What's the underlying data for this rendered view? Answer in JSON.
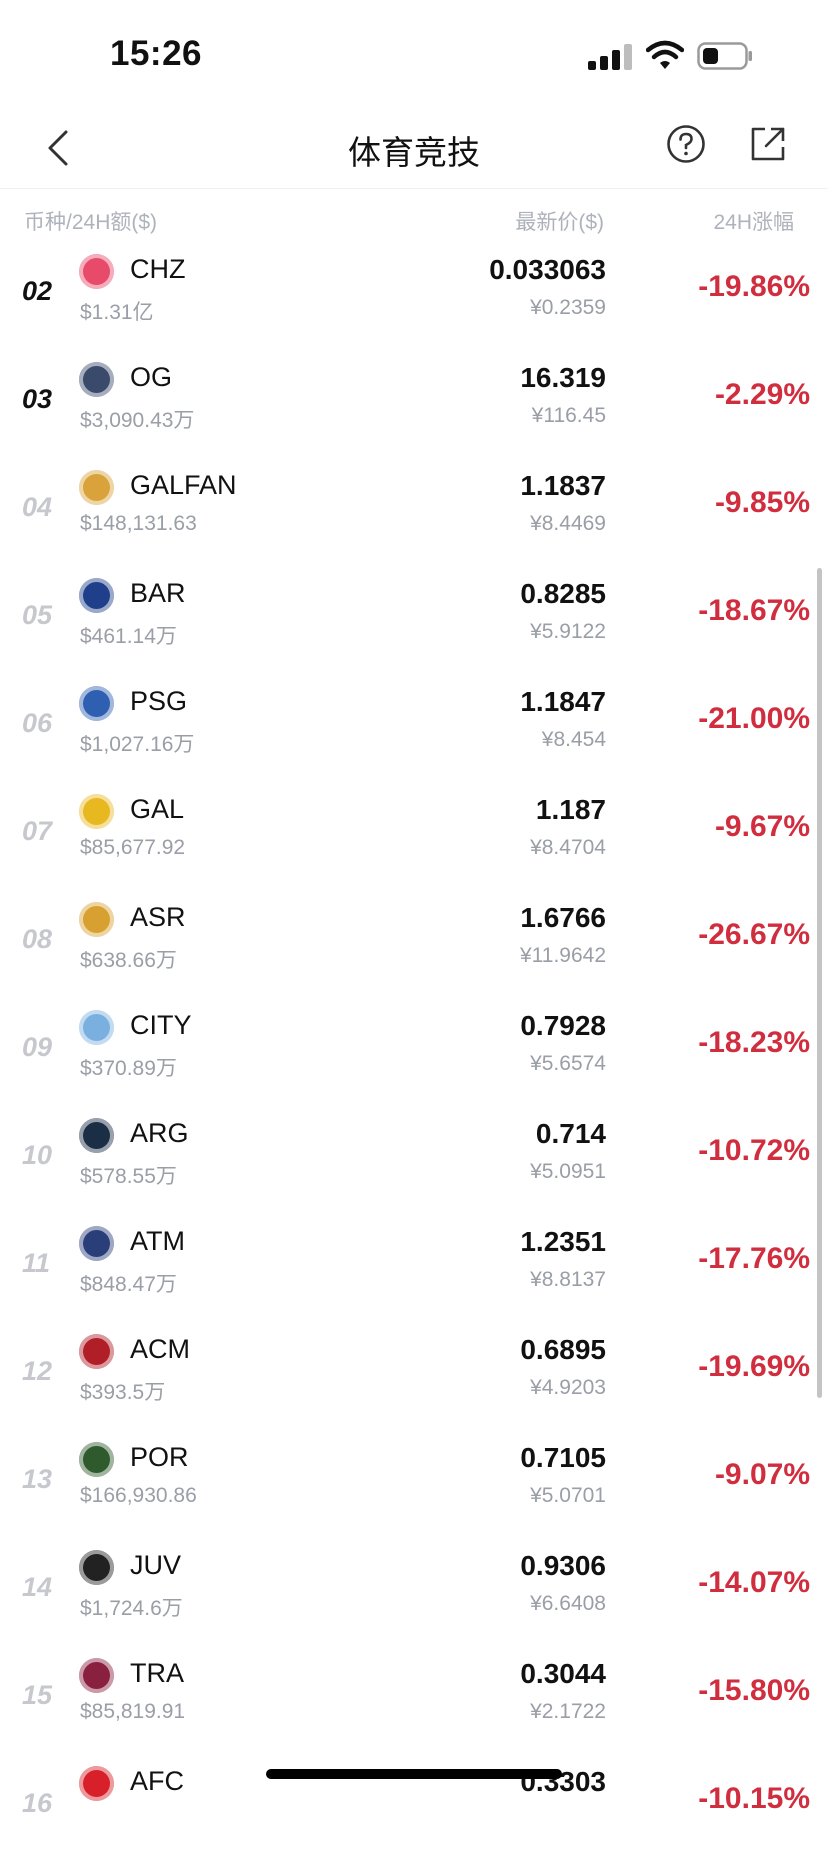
{
  "status_bar": {
    "time": "15:26"
  },
  "header": {
    "title": "体育竞技"
  },
  "columns": {
    "left": "币种/24H额($)",
    "middle": "最新价($)",
    "right": "24H涨幅"
  },
  "rows": [
    {
      "rank": "02",
      "symbol": "CHZ",
      "volume": "$1.31亿",
      "price": "0.033063",
      "price_cny": "¥0.2359",
      "change": "-19.86%",
      "color": "#e84a6a"
    },
    {
      "rank": "03",
      "symbol": "OG",
      "volume": "$3,090.43万",
      "price": "16.319",
      "price_cny": "¥116.45",
      "change": "-2.29%",
      "color": "#3a4a6a"
    },
    {
      "rank": "04",
      "symbol": "GALFAN",
      "volume": "$148,131.63",
      "price": "1.1837",
      "price_cny": "¥8.4469",
      "change": "-9.85%",
      "color": "#d9a23a"
    },
    {
      "rank": "05",
      "symbol": "BAR",
      "volume": "$461.14万",
      "price": "0.8285",
      "price_cny": "¥5.9122",
      "change": "-18.67%",
      "color": "#1f3f8a"
    },
    {
      "rank": "06",
      "symbol": "PSG",
      "volume": "$1,027.16万",
      "price": "1.1847",
      "price_cny": "¥8.454",
      "change": "-21.00%",
      "color": "#2f5fb0"
    },
    {
      "rank": "07",
      "symbol": "GAL",
      "volume": "$85,677.92",
      "price": "1.187",
      "price_cny": "¥8.4704",
      "change": "-9.67%",
      "color": "#e8b820"
    },
    {
      "rank": "08",
      "symbol": "ASR",
      "volume": "$638.66万",
      "price": "1.6766",
      "price_cny": "¥11.9642",
      "change": "-26.67%",
      "color": "#d8a030"
    },
    {
      "rank": "09",
      "symbol": "CITY",
      "volume": "$370.89万",
      "price": "0.7928",
      "price_cny": "¥5.6574",
      "change": "-18.23%",
      "color": "#7ab0e0"
    },
    {
      "rank": "10",
      "symbol": "ARG",
      "volume": "$578.55万",
      "price": "0.714",
      "price_cny": "¥5.0951",
      "change": "-10.72%",
      "color": "#1a2e45"
    },
    {
      "rank": "11",
      "symbol": "ATM",
      "volume": "$848.47万",
      "price": "1.2351",
      "price_cny": "¥8.8137",
      "change": "-17.76%",
      "color": "#2a3f7a"
    },
    {
      "rank": "12",
      "symbol": "ACM",
      "volume": "$393.5万",
      "price": "0.6895",
      "price_cny": "¥4.9203",
      "change": "-19.69%",
      "color": "#b01e28"
    },
    {
      "rank": "13",
      "symbol": "POR",
      "volume": "$166,930.86",
      "price": "0.7105",
      "price_cny": "¥5.0701",
      "change": "-9.07%",
      "color": "#2e5a2e"
    },
    {
      "rank": "14",
      "symbol": "JUV",
      "volume": "$1,724.6万",
      "price": "0.9306",
      "price_cny": "¥6.6408",
      "change": "-14.07%",
      "color": "#222222"
    },
    {
      "rank": "15",
      "symbol": "TRA",
      "volume": "$85,819.91",
      "price": "0.3044",
      "price_cny": "¥2.1722",
      "change": "-15.80%",
      "color": "#8a2040"
    },
    {
      "rank": "16",
      "symbol": "AFC",
      "volume": "",
      "price": "0.3303",
      "price_cny": "",
      "change": "-10.15%",
      "color": "#d8202a"
    }
  ]
}
